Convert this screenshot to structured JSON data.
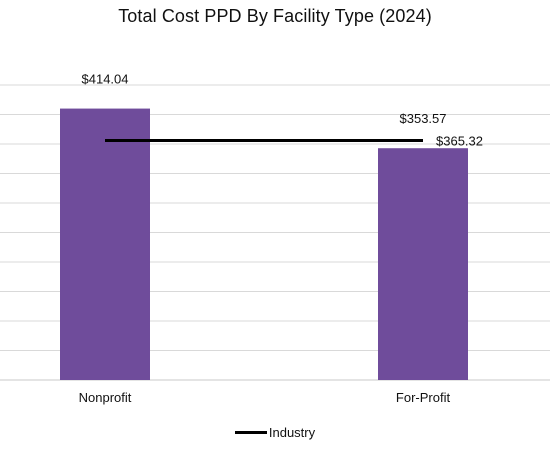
{
  "chart_data": {
    "type": "bar",
    "title": "Total Cost PPD By Facility Type (2024)",
    "categories": [
      "Nonprofit",
      "For-Profit"
    ],
    "series": [
      {
        "values": [
          414.04,
          353.57
        ],
        "labels": [
          "$414.04",
          "$353.57"
        ],
        "color": "#6f4c9b"
      }
    ],
    "reference_line": {
      "name": "Industry",
      "value": 365.32,
      "label": "$365.32",
      "color": "#000000"
    },
    "ylim": [
      0,
      450
    ],
    "grid": true,
    "legend_position": "bottom"
  }
}
